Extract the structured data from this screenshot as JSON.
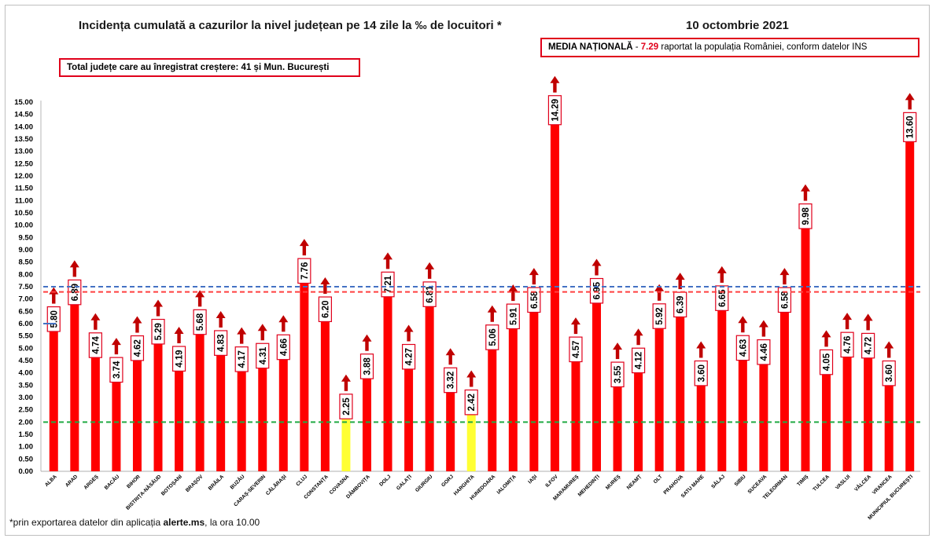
{
  "title": "Incidența cumulată a cazurilor la nivel județean pe 14 zile la ‰ de locuitori *",
  "date": "10 octombrie 2021",
  "note": "Total județe care au înregistrat creștere:  41 și Mun. București",
  "media": {
    "label": "MEDIA NAȚIONALĂ",
    "dash": "  -  ",
    "value": "7.29",
    "rest": " raportat la populația României, conform datelor INS"
  },
  "footnote": {
    "prefix": "*prin exportarea datelor din aplicația ",
    "app": "alerte.ms",
    "suffix": ", la ora 10.00"
  },
  "colors": {
    "bar": "#ff0000",
    "highlight": "#ffff33",
    "arrow": "#c00000",
    "national_line": "#ff4040",
    "upper_line": "#4472c4",
    "lower_line": "#22aa44"
  },
  "chart_data": {
    "type": "bar",
    "ylim": [
      0,
      15
    ],
    "yticks": [
      "0.00",
      "0.50",
      "1.00",
      "1.50",
      "2.00",
      "2.50",
      "3.00",
      "3.50",
      "4.00",
      "4.50",
      "5.00",
      "5.50",
      "6.00",
      "6.50",
      "7.00",
      "7.50",
      "8.00",
      "8.50",
      "9.00",
      "9.50",
      "10.00",
      "10.50",
      "11.00",
      "11.50",
      "12.00",
      "12.50",
      "13.00",
      "13.50",
      "14.00",
      "14.50",
      "15.00"
    ],
    "categories": [
      "ALBA",
      "ARAD",
      "ARGEȘ",
      "BACĂU",
      "BIHOR",
      "BISTRIȚA-NĂSĂUD",
      "BOTOȘANI",
      "BRAȘOV",
      "BRĂILA",
      "BUZĂU",
      "CARAȘ-SEVERIN",
      "CĂLĂRAȘI",
      "CLUJ",
      "CONSTANȚA",
      "COVASNA",
      "DÂMBOVIȚA",
      "DOLJ",
      "GALAȚI",
      "GIURGIU",
      "GORJ",
      "HARGHITA",
      "HUNEDOARA",
      "IALOMIȚA",
      "IAȘI",
      "ILFOV",
      "MARAMUREȘ",
      "MEHEDINȚI",
      "MUREȘ",
      "NEAMȚ",
      "OLT",
      "PRAHOVA",
      "SATU MARE",
      "SĂLAJ",
      "SIBIU",
      "SUCEAVA",
      "TELEORMAN",
      "TIMIȘ",
      "TULCEA",
      "VASLUI",
      "VÂLCEA",
      "VRANCEA",
      "MUNICIPIUL BUCUREȘTI"
    ],
    "values": [
      5.8,
      6.89,
      4.74,
      3.74,
      4.62,
      5.29,
      4.19,
      5.68,
      4.83,
      4.17,
      4.31,
      4.66,
      7.76,
      6.2,
      2.25,
      3.88,
      7.21,
      4.27,
      6.81,
      3.32,
      2.42,
      5.06,
      5.91,
      6.58,
      14.29,
      4.57,
      6.95,
      3.55,
      4.12,
      5.92,
      6.39,
      3.6,
      6.65,
      4.63,
      4.46,
      6.58,
      9.98,
      4.05,
      4.76,
      4.72,
      3.6,
      13.6
    ],
    "labels": [
      "5.80",
      "6.89",
      "4.74",
      "3.74",
      "4.62",
      "5.29",
      "4.19",
      "5.68",
      "4.83",
      "4.17",
      "4.31",
      "4.66",
      "7.76",
      "6.20",
      "2.25",
      "3.88",
      "7.21",
      "4.27",
      "6.81",
      "3.32",
      "2.42",
      "5.06",
      "5.91",
      "6.58",
      "14.29",
      "4.57",
      "6.95",
      "3.55",
      "4.12",
      "5.92",
      "6.39",
      "3.60",
      "6.65",
      "4.63",
      "4.46",
      "6.58",
      "9.98",
      "4.05",
      "4.76",
      "4.72",
      "3.60",
      "13.60"
    ],
    "highlighted": [
      "COVASNA",
      "HARGHITA"
    ],
    "reference_lines": [
      {
        "value": 7.5,
        "style": "dashed",
        "color": "#4472c4"
      },
      {
        "value": 7.29,
        "style": "dashed",
        "color": "#ff4040"
      },
      {
        "value": 2.0,
        "style": "dashed",
        "color": "#22aa44"
      }
    ],
    "trend": "up"
  }
}
